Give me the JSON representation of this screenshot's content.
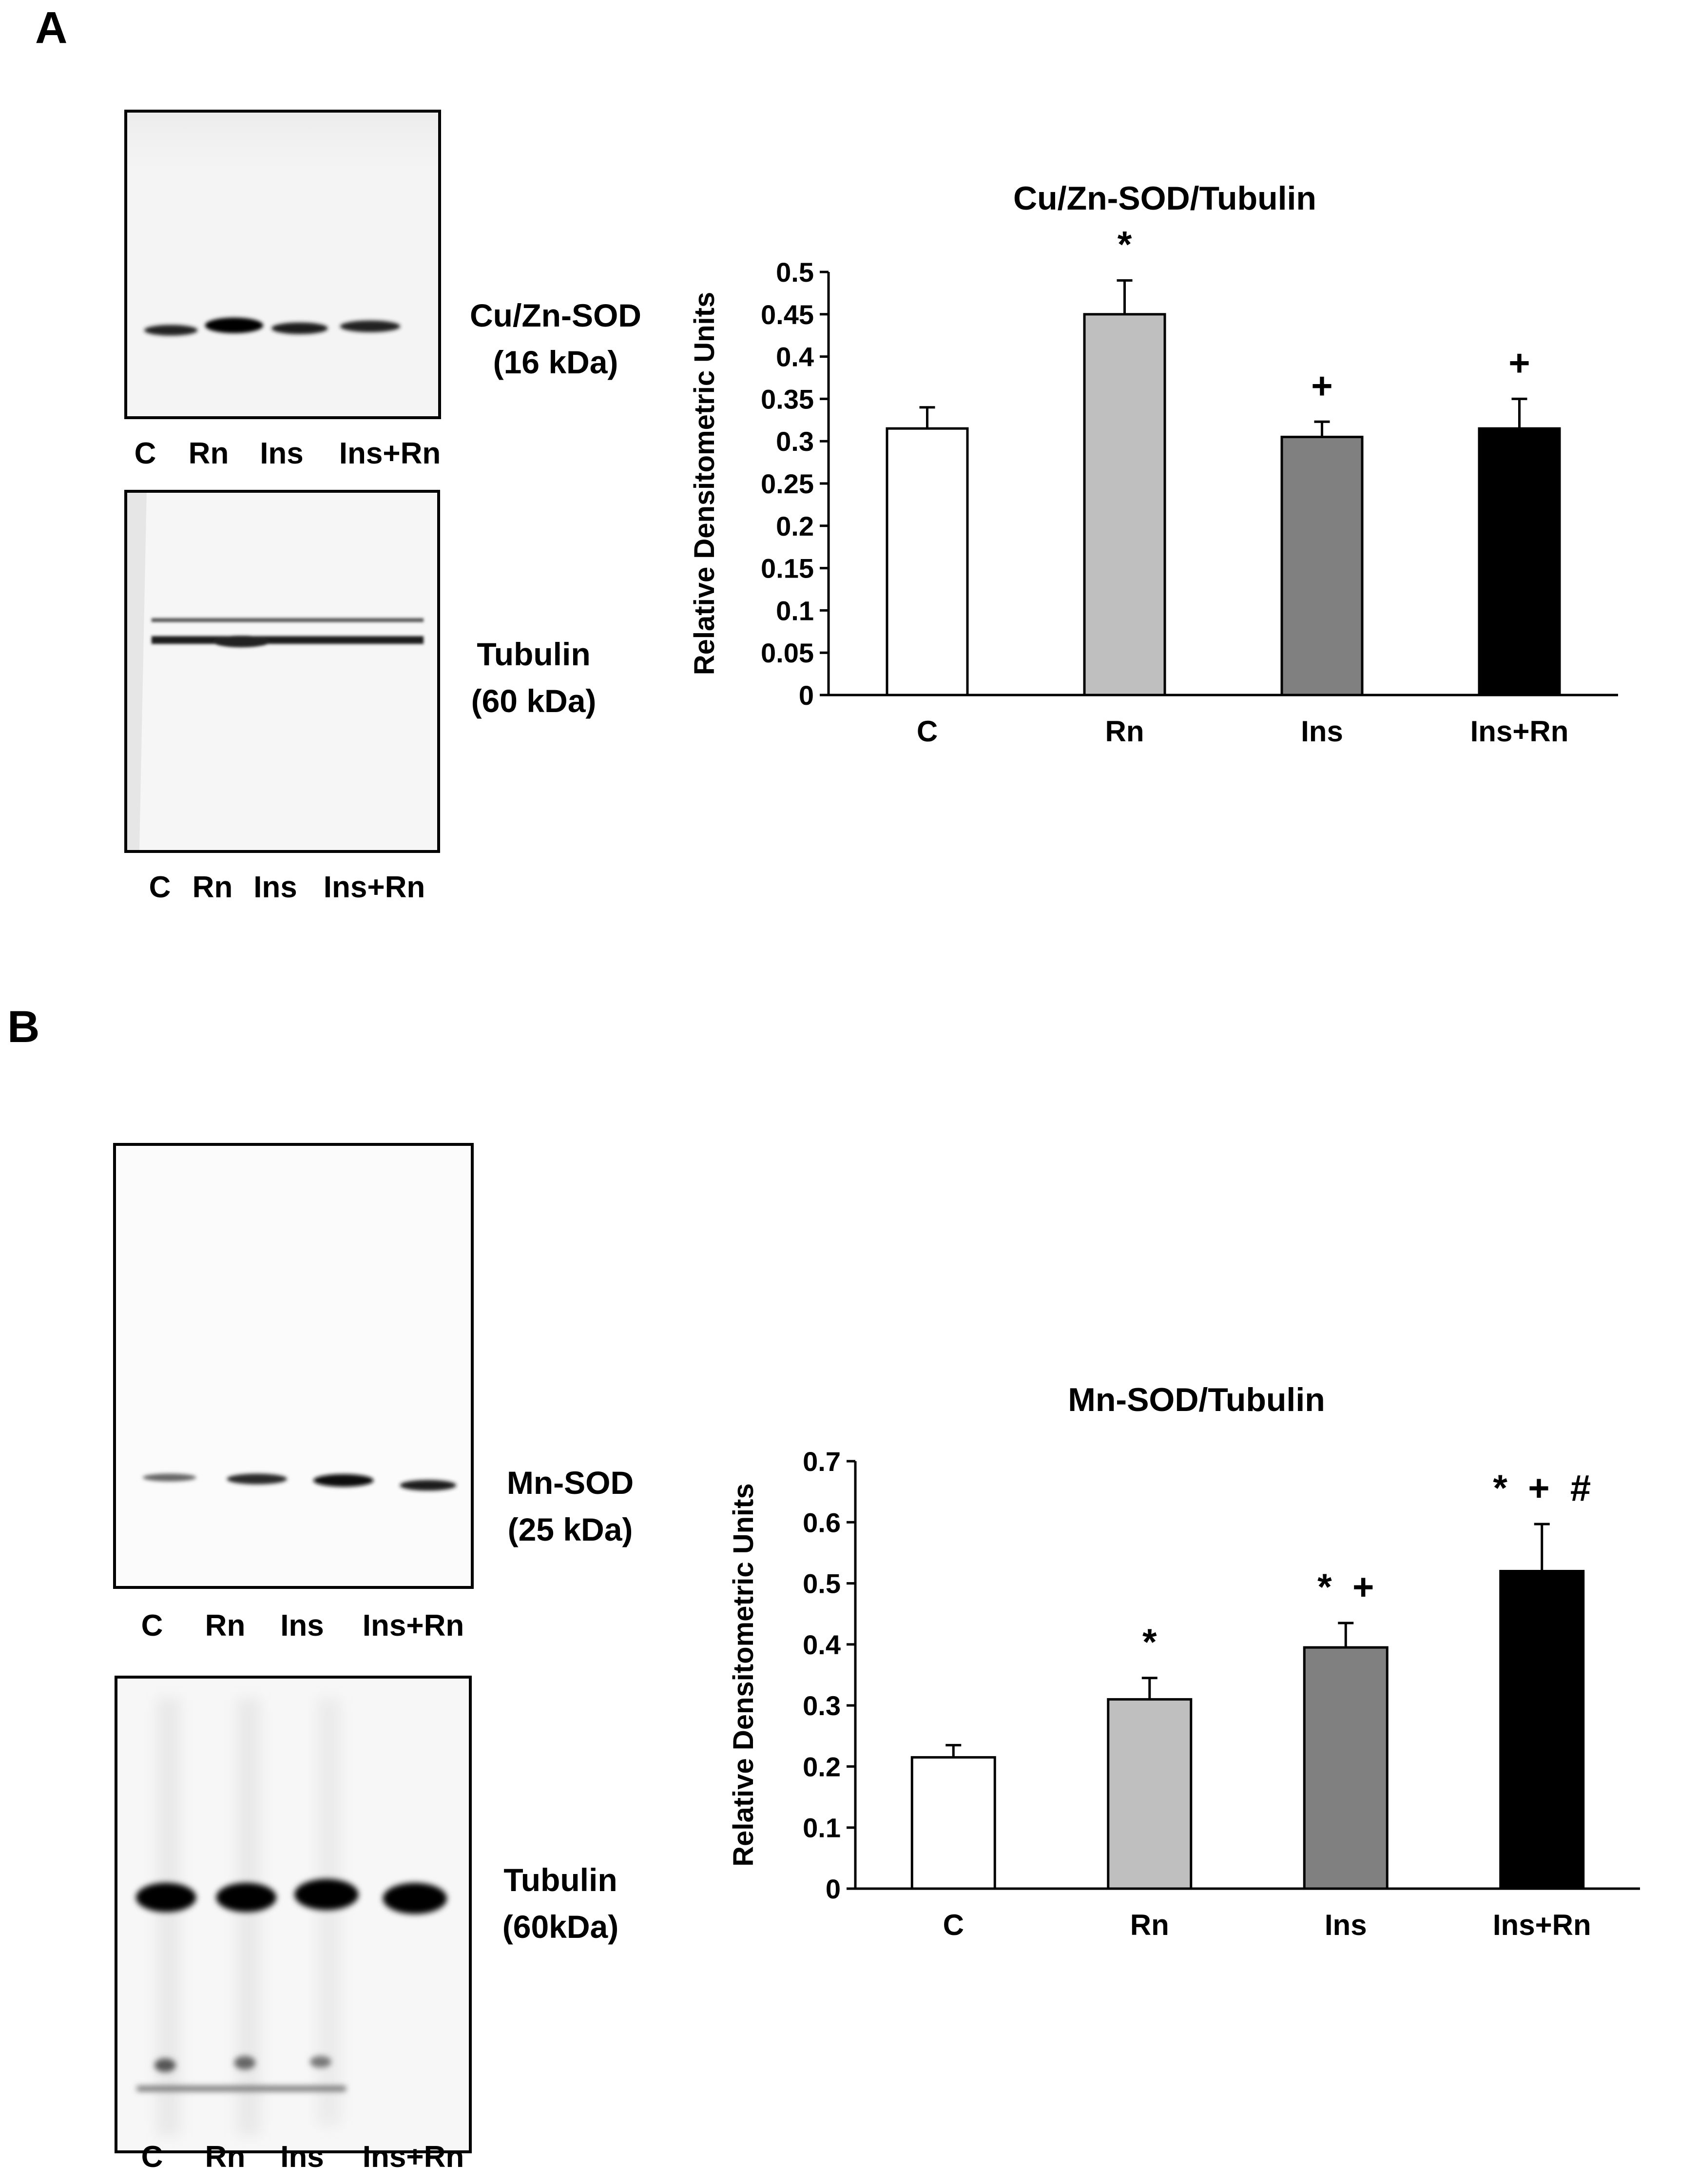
{
  "panels": [
    {
      "letter": "A",
      "blots": [
        {
          "protein": "Cu/Zn-SOD",
          "size": "(16 kDa)",
          "lanes": [
            "C",
            "Rn",
            "Ins",
            "Ins+Rn"
          ]
        },
        {
          "protein": "Tubulin",
          "size": "(60 kDa)",
          "lanes": [
            "C",
            "Rn",
            "Ins",
            "Ins+Rn"
          ]
        }
      ]
    },
    {
      "letter": "B",
      "blots": [
        {
          "protein": "Mn-SOD",
          "size": "(25 kDa)",
          "lanes": [
            "C",
            "Rn",
            "Ins",
            "Ins+Rn"
          ]
        },
        {
          "protein": "Tubulin",
          "size": "(60kDa)",
          "lanes": [
            "C",
            "Rn",
            "Ins",
            "Ins+Rn"
          ]
        }
      ]
    }
  ],
  "chart_data": [
    {
      "type": "bar",
      "title": "Cu/Zn-SOD/Tubulin",
      "xlabel": "",
      "ylabel": "Relative Densitometric Units",
      "categories": [
        "C",
        "Rn",
        "Ins",
        "Ins+Rn"
      ],
      "values": [
        0.315,
        0.45,
        0.305,
        0.315
      ],
      "errors": [
        0.025,
        0.04,
        0.018,
        0.035
      ],
      "annotations": [
        "",
        "*",
        "+",
        "+"
      ],
      "bar_colors": [
        "#ffffff",
        "#bfbfbf",
        "#808080",
        "#000000"
      ],
      "ylim": [
        0,
        0.5
      ],
      "yticks": [
        "0",
        "0.05",
        "0.1",
        "0.15",
        "0.2",
        "0.25",
        "0.3",
        "0.35",
        "0.4",
        "0.45",
        "0.5"
      ],
      "ytick_values": [
        0,
        0.05,
        0.1,
        0.15,
        0.2,
        0.25,
        0.3,
        0.35,
        0.4,
        0.45,
        0.5
      ],
      "grid": false,
      "legend": "none"
    },
    {
      "type": "bar",
      "title": "Mn-SOD/Tubulin",
      "xlabel": "",
      "ylabel": "Relative Densitometric Units",
      "categories": [
        "C",
        "Rn",
        "Ins",
        "Ins+Rn"
      ],
      "values": [
        0.215,
        0.31,
        0.395,
        0.52
      ],
      "errors": [
        0.02,
        0.035,
        0.04,
        0.077
      ],
      "annotations": [
        "",
        "*",
        "*  +",
        "*  +  #"
      ],
      "bar_colors": [
        "#ffffff",
        "#bfbfbf",
        "#808080",
        "#000000"
      ],
      "ylim": [
        0,
        0.7
      ],
      "yticks": [
        "0",
        "0.1",
        "0.2",
        "0.3",
        "0.4",
        "0.5",
        "0.6",
        "0.7"
      ],
      "ytick_values": [
        0,
        0.1,
        0.2,
        0.3,
        0.4,
        0.5,
        0.6,
        0.7
      ],
      "grid": false,
      "legend": "none"
    }
  ]
}
